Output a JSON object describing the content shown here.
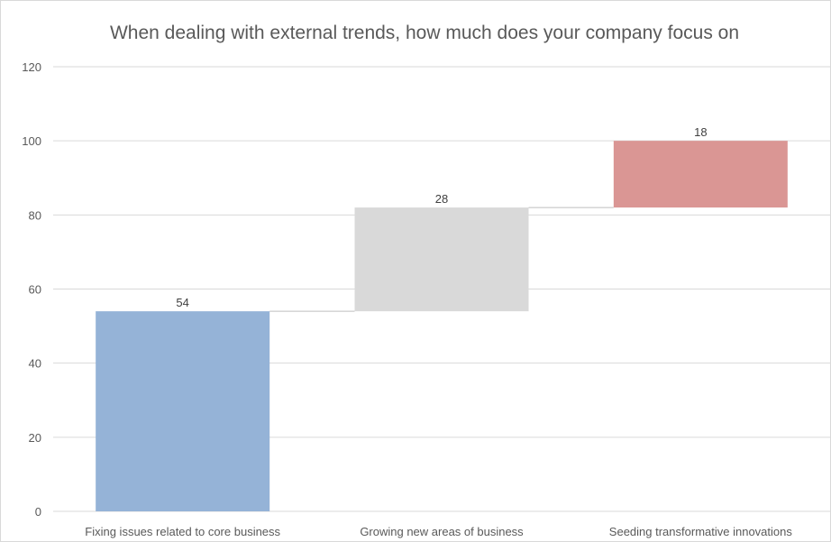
{
  "chart_data": {
    "type": "bar",
    "subtype": "waterfall",
    "title": "When dealing with external trends, how much does your company focus on",
    "xlabel": "",
    "ylabel": "",
    "ylim": [
      0,
      120
    ],
    "yticks": [
      0,
      20,
      40,
      60,
      80,
      100,
      120
    ],
    "grid": true,
    "legend": "none",
    "categories": [
      "Fixing issues related to core business",
      "Growing new areas of business",
      "Seeding transformative innovations"
    ],
    "values": [
      54,
      28,
      18
    ],
    "data_labels": [
      "54",
      "28",
      "18"
    ],
    "colors": [
      "#95b3d7",
      "#d9d9d9",
      "#da9694"
    ],
    "gridline_color": "#d9d9d9",
    "axis_text_color": "#595959"
  }
}
